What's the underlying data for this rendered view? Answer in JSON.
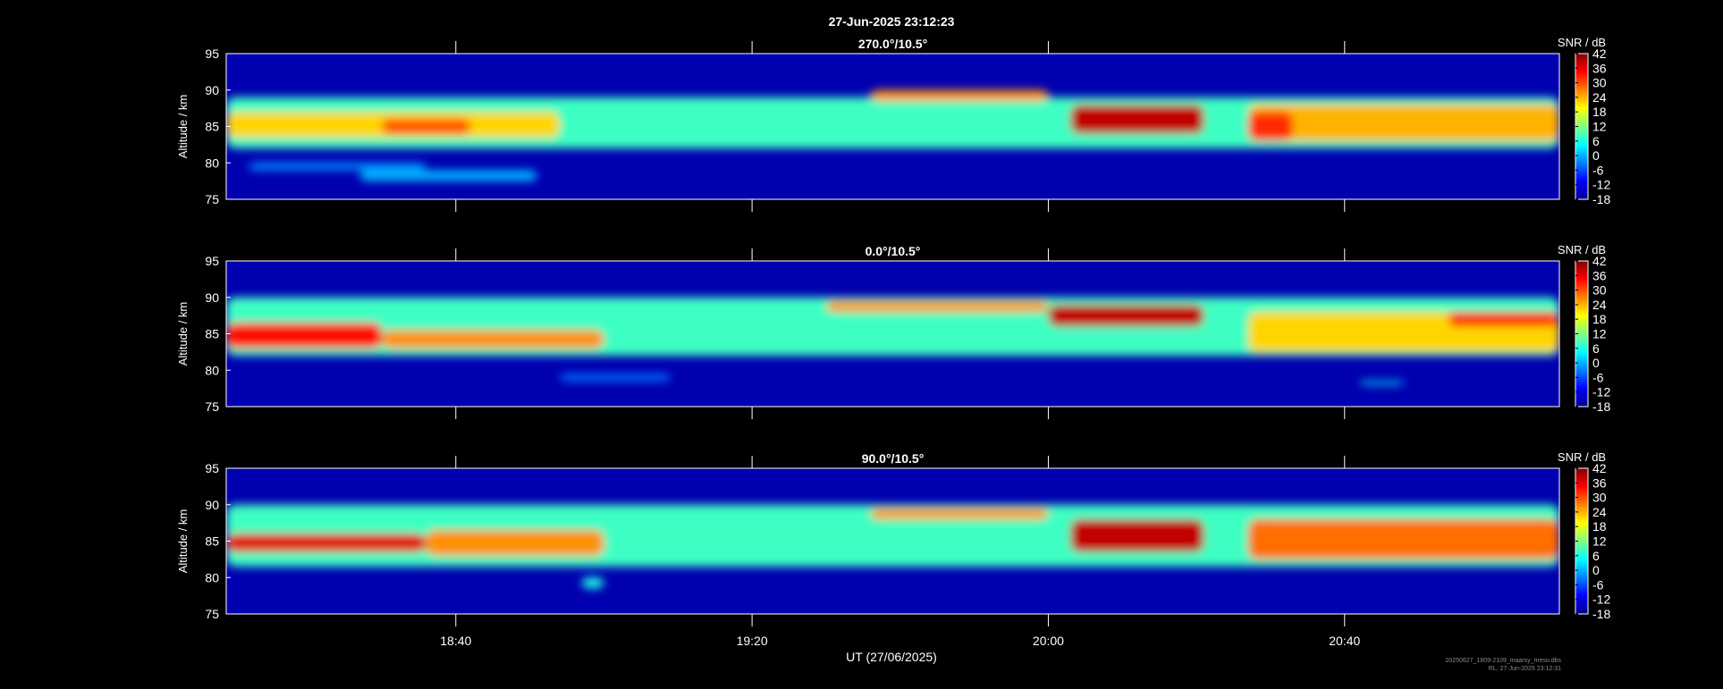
{
  "figure_title": "27-Jun-2025 23:12:23",
  "xlabel": "UT (27/06/2025)",
  "footer_line1": "20250627_1809-2109_maarsy_meso.dbs",
  "footer_line2": "RL, 27-Jun-2025 23:12:31",
  "colors": {
    "background": "#000000",
    "axis": "#ffffff",
    "low": "#0000b0",
    "high": "#c00000"
  },
  "chart_data": [
    {
      "type": "heatmap",
      "title": "270.0°/10.5°",
      "xlabel": "UT (27/06/2025)",
      "ylabel": "Altitude / km",
      "x_range": [
        "18:09",
        "21:09"
      ],
      "x_ticks": [
        "18:40",
        "19:20",
        "20:00",
        "20:40"
      ],
      "ylim": [
        75,
        95
      ],
      "y_ticks": [
        75,
        80,
        85,
        90,
        95
      ],
      "colorbar": {
        "label": "SNR / dB",
        "range": [
          -18,
          42
        ],
        "ticks": [
          42,
          36,
          30,
          24,
          18,
          12,
          6,
          0,
          -6,
          -12,
          -18
        ]
      },
      "features": [
        {
          "t": [
            18.15,
            21.15
          ],
          "alt": [
            82.0,
            89.0
          ],
          "snr": 8
        },
        {
          "t": [
            18.15,
            18.9
          ],
          "alt": [
            83.5,
            87.0
          ],
          "snr": 22
        },
        {
          "t": [
            18.5,
            18.7
          ],
          "alt": [
            84.0,
            86.0
          ],
          "snr": 30
        },
        {
          "t": [
            18.2,
            18.6
          ],
          "alt": [
            79.0,
            80.0
          ],
          "snr": -2
        },
        {
          "t": [
            18.45,
            18.85
          ],
          "alt": [
            77.5,
            79.0
          ],
          "snr": 0
        },
        {
          "t": [
            19.6,
            20.0
          ],
          "alt": [
            88.5,
            90.0
          ],
          "snr": 26
        },
        {
          "t": [
            20.05,
            20.35
          ],
          "alt": [
            84.0,
            88.0
          ],
          "snr": 38
        },
        {
          "t": [
            20.45,
            21.15
          ],
          "alt": [
            83.0,
            88.0
          ],
          "snr": 24
        },
        {
          "t": [
            20.45,
            20.55
          ],
          "alt": [
            83.0,
            87.0
          ],
          "snr": 32
        }
      ]
    },
    {
      "type": "heatmap",
      "title": "0.0°/10.5°",
      "xlabel": "UT (27/06/2025)",
      "ylabel": "Altitude / km",
      "x_range": [
        "18:09",
        "21:09"
      ],
      "x_ticks": [
        "18:40",
        "19:20",
        "20:00",
        "20:40"
      ],
      "ylim": [
        75,
        95
      ],
      "y_ticks": [
        75,
        80,
        85,
        90,
        95
      ],
      "colorbar": {
        "label": "SNR / dB",
        "range": [
          -18,
          42
        ],
        "ticks": [
          42,
          36,
          30,
          24,
          18,
          12,
          6,
          0,
          -6,
          -12,
          -18
        ]
      },
      "features": [
        {
          "t": [
            18.15,
            21.15
          ],
          "alt": [
            82.0,
            90.0
          ],
          "snr": 8
        },
        {
          "t": [
            18.15,
            18.5
          ],
          "alt": [
            83.0,
            86.5
          ],
          "snr": 34
        },
        {
          "t": [
            18.5,
            19.0
          ],
          "alt": [
            83.0,
            85.5
          ],
          "snr": 26
        },
        {
          "t": [
            19.5,
            20.0
          ],
          "alt": [
            88.0,
            89.5
          ],
          "snr": 26
        },
        {
          "t": [
            20.0,
            20.35
          ],
          "alt": [
            86.0,
            89.0
          ],
          "snr": 38
        },
        {
          "t": [
            20.45,
            21.15
          ],
          "alt": [
            82.5,
            88.0
          ],
          "snr": 22
        },
        {
          "t": [
            20.9,
            21.15
          ],
          "alt": [
            86.0,
            88.0
          ],
          "snr": 32
        },
        {
          "t": [
            18.9,
            19.15
          ],
          "alt": [
            78.5,
            79.5
          ],
          "snr": -4
        },
        {
          "t": [
            20.7,
            20.8
          ],
          "alt": [
            78.0,
            78.5
          ],
          "snr": 4
        }
      ]
    },
    {
      "type": "heatmap",
      "title": "90.0°/10.5°",
      "xlabel": "UT (27/06/2025)",
      "ylabel": "Altitude / km",
      "x_range": [
        "18:09",
        "21:09"
      ],
      "x_ticks": [
        "18:40",
        "19:20",
        "20:00",
        "20:40"
      ],
      "ylim": [
        75,
        95
      ],
      "y_ticks": [
        75,
        80,
        85,
        90,
        95
      ],
      "colorbar": {
        "label": "SNR / dB",
        "range": [
          -18,
          42
        ],
        "ticks": [
          42,
          36,
          30,
          24,
          18,
          12,
          6,
          0,
          -6,
          -12,
          -18
        ]
      },
      "features": [
        {
          "t": [
            18.15,
            21.15
          ],
          "alt": [
            81.5,
            90.0
          ],
          "snr": 8
        },
        {
          "t": [
            18.15,
            18.6
          ],
          "alt": [
            83.5,
            86.0
          ],
          "snr": 36
        },
        {
          "t": [
            18.6,
            19.0
          ],
          "alt": [
            83.0,
            86.5
          ],
          "snr": 26
        },
        {
          "t": [
            19.6,
            20.0
          ],
          "alt": [
            88.0,
            89.5
          ],
          "snr": 26
        },
        {
          "t": [
            20.05,
            20.35
          ],
          "alt": [
            83.5,
            88.0
          ],
          "snr": 38
        },
        {
          "t": [
            20.45,
            21.15
          ],
          "alt": [
            82.5,
            88.0
          ],
          "snr": 28
        },
        {
          "t": [
            18.95,
            19.0
          ],
          "alt": [
            78.5,
            80.0
          ],
          "snr": 6
        }
      ]
    }
  ]
}
